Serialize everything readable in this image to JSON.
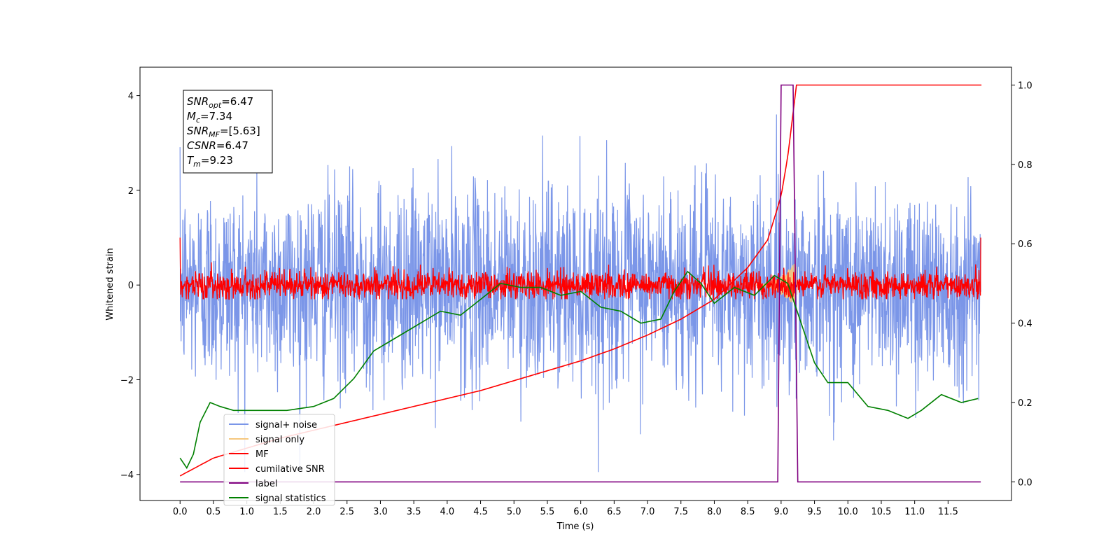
{
  "chart_data": {
    "type": "line",
    "xlabel": "Time (s)",
    "ylabel": "Whitened strain",
    "xlim": [
      -0.6,
      12.45
    ],
    "ylim_left": [
      -4.55,
      4.6
    ],
    "ylim_right": [
      -0.047,
      1.045
    ],
    "x_ticks": [
      "0.0",
      "0.5",
      "1.0",
      "1.5",
      "2.0",
      "2.5",
      "3.0",
      "3.5",
      "4.0",
      "4.5",
      "5.0",
      "5.5",
      "6.0",
      "6.5",
      "7.0",
      "7.5",
      "8.0",
      "8.5",
      "9.0",
      "9.5",
      "10.0",
      "10.5",
      "11.0",
      "11.5"
    ],
    "y_ticks_left": [
      "4",
      "2",
      "0",
      "-2",
      "-4"
    ],
    "y_ticks_right": [
      "1.0",
      "0.8",
      "0.6",
      "0.4",
      "0.2",
      "0.0"
    ],
    "grid": false,
    "legend_position": "lower-left",
    "annotation": [
      {
        "var": "SNR",
        "sub": "opt",
        "value": "=6.47"
      },
      {
        "var": "M",
        "sub": "c",
        "value": "=7.34"
      },
      {
        "var": "SNR",
        "sub": "MF",
        "value": "=[5.63]"
      },
      {
        "var": "CSNR",
        "sub": "",
        "value": "=6.47"
      },
      {
        "var": "T",
        "sub": "m",
        "value": "=9.23"
      }
    ],
    "series": [
      {
        "name": "signal+ noise",
        "axis": "left",
        "color": "#7b96e8",
        "kind": "noise",
        "x_range": [
          0,
          11.99
        ],
        "amplitude": 1.4,
        "peaks": [
          4.2,
          -3.9
        ]
      },
      {
        "name": "signal only",
        "axis": "left",
        "color": "#f5c77e",
        "kind": "chirp",
        "x_range": [
          8.6,
          9.23
        ],
        "peak_amplitude": 0.5
      },
      {
        "name": "MF",
        "axis": "left",
        "color": "#ff0000",
        "kind": "noise",
        "x_range": [
          0,
          11.99
        ],
        "amplitude": 0.25,
        "start_value": 1.0,
        "end_value": 1.0
      },
      {
        "name": "cumilative SNR",
        "axis": "right",
        "color": "#ff0000",
        "x": [
          0,
          0.5,
          1.0,
          1.5,
          2.0,
          2.5,
          3.0,
          3.5,
          4.0,
          4.5,
          5.0,
          5.5,
          6.0,
          6.5,
          7.0,
          7.5,
          8.0,
          8.5,
          8.8,
          9.0,
          9.1,
          9.23,
          12.0
        ],
        "y": [
          0.015,
          0.06,
          0.085,
          0.11,
          0.13,
          0.15,
          0.17,
          0.19,
          0.21,
          0.23,
          0.255,
          0.28,
          0.305,
          0.335,
          0.37,
          0.41,
          0.46,
          0.54,
          0.61,
          0.72,
          0.82,
          1.0,
          1.0
        ]
      },
      {
        "name": "label",
        "axis": "right",
        "color": "#800080",
        "x": [
          0,
          8.95,
          9.0,
          9.18,
          9.25,
          11.99
        ],
        "y": [
          0.0,
          0.0,
          1.0,
          1.0,
          0.0,
          0.0
        ]
      },
      {
        "name": "signal statistics",
        "axis": "right",
        "color": "#008000",
        "x": [
          0,
          0.1,
          0.2,
          0.3,
          0.45,
          0.6,
          0.8,
          1.0,
          1.3,
          1.6,
          2.0,
          2.3,
          2.6,
          2.9,
          3.1,
          3.4,
          3.7,
          3.9,
          4.2,
          4.5,
          4.8,
          5.1,
          5.4,
          5.7,
          6.0,
          6.3,
          6.6,
          6.9,
          7.2,
          7.4,
          7.6,
          7.8,
          8.0,
          8.3,
          8.6,
          8.9,
          9.1,
          9.3,
          9.5,
          9.7,
          10.0,
          10.3,
          10.6,
          10.9,
          11.1,
          11.4,
          11.7,
          11.95
        ],
        "y": [
          0.06,
          0.035,
          0.07,
          0.15,
          0.2,
          0.19,
          0.18,
          0.18,
          0.18,
          0.18,
          0.19,
          0.21,
          0.26,
          0.33,
          0.35,
          0.38,
          0.41,
          0.43,
          0.42,
          0.46,
          0.5,
          0.49,
          0.49,
          0.47,
          0.48,
          0.44,
          0.43,
          0.4,
          0.41,
          0.48,
          0.53,
          0.5,
          0.45,
          0.49,
          0.47,
          0.52,
          0.5,
          0.4,
          0.3,
          0.25,
          0.25,
          0.19,
          0.18,
          0.16,
          0.18,
          0.22,
          0.2,
          0.21
        ]
      }
    ]
  }
}
